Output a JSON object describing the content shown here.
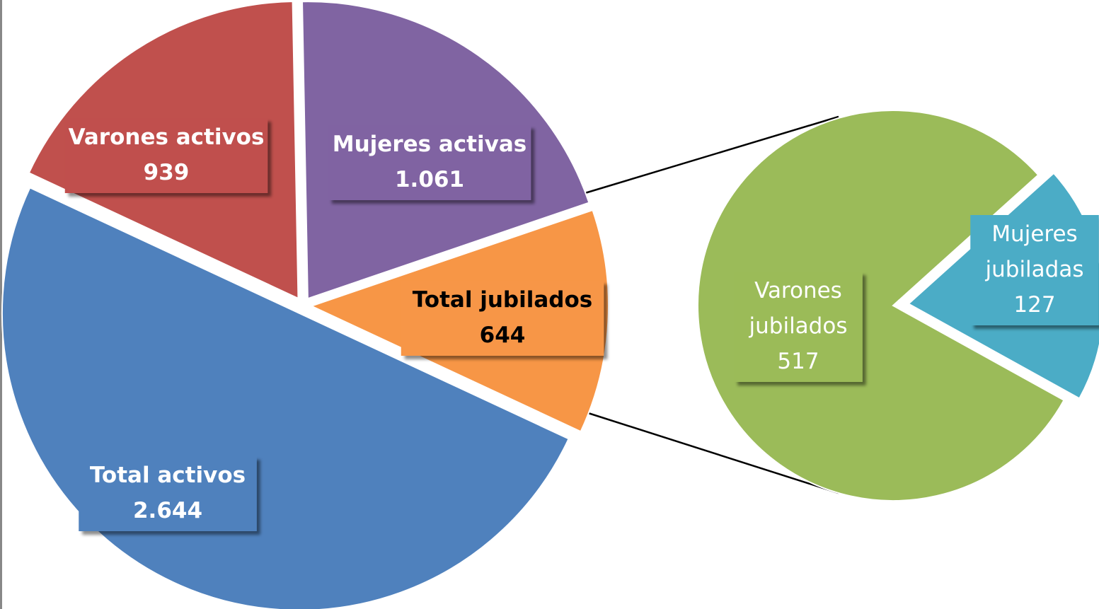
{
  "chart_data": [
    {
      "type": "pie",
      "categories": [
        "Total activos",
        "Varones activos",
        "Mujeres activas",
        "Total jubilados"
      ],
      "values": [
        2644,
        939,
        1061,
        644
      ],
      "value_labels": [
        "2.644",
        "939",
        "1.061",
        "644"
      ],
      "colors": [
        "#4f81bd",
        "#c0504d",
        "#8064a2",
        "#f79646"
      ]
    },
    {
      "type": "pie",
      "categories": [
        "Varones jubilados",
        "Mujeres jubiladas"
      ],
      "values": [
        517,
        127
      ],
      "value_labels": [
        "517",
        "127"
      ],
      "colors": [
        "#9bbb59",
        "#4bacc6"
      ]
    }
  ]
}
